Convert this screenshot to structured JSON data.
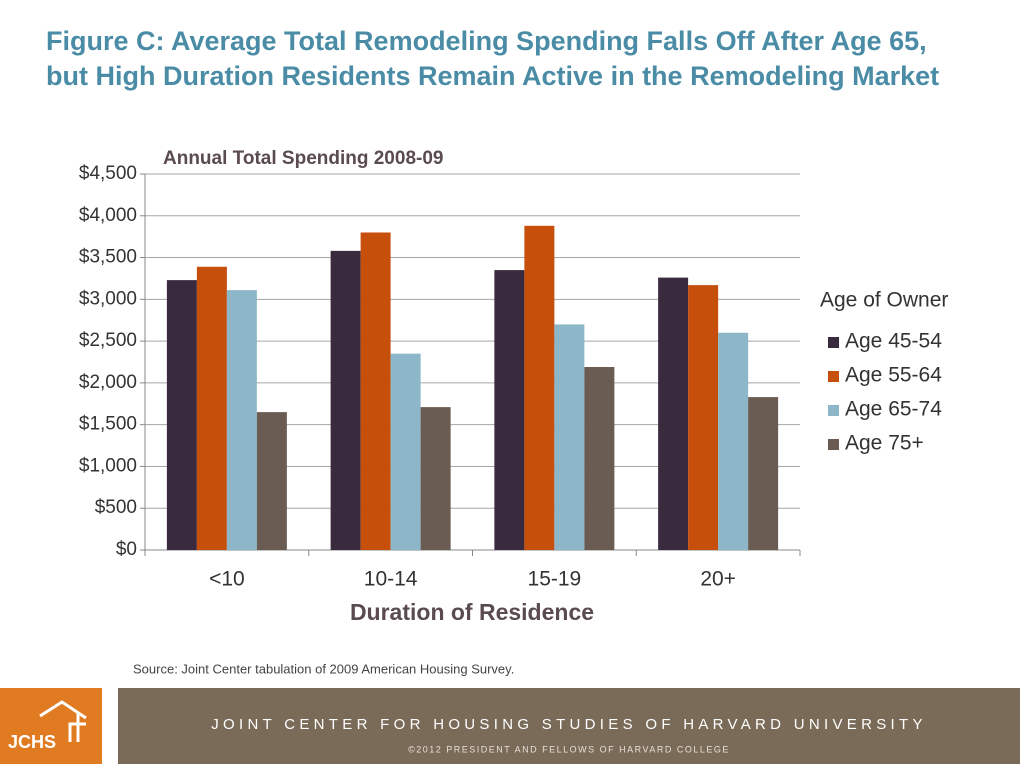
{
  "chart_data": {
    "type": "bar",
    "title": "Figure C: Average Total Remodeling Spending Falls Off After Age 65, but High Duration Residents Remain Active in the Remodeling Market",
    "subtitle": "Annual Total Spending 2008-09",
    "x_label": "Duration of Residence",
    "legend_title": "Age of Owner",
    "legend": "right",
    "grid": true,
    "source": "Source: Joint Center tabulation  of 2009 American Housing Survey.",
    "categories": [
      "<10",
      "10-14",
      "15-19",
      "20+"
    ],
    "series": [
      {
        "name": "Age 45-54",
        "color": "#3a2a3e",
        "values": [
          3230,
          3580,
          3350,
          3260
        ]
      },
      {
        "name": "Age 55-64",
        "color": "#c54f0b",
        "values": [
          3390,
          3800,
          3880,
          3170
        ]
      },
      {
        "name": "Age 65-74",
        "color": "#8db7c8",
        "values": [
          3110,
          2350,
          2700,
          2600
        ]
      },
      {
        "name": "Age 75+",
        "color": "#6a5c52",
        "values": [
          1650,
          1710,
          2190,
          1830
        ]
      }
    ],
    "ylim": [
      0,
      4500
    ],
    "yticks": [
      {
        "value": 0,
        "label": "$0"
      },
      {
        "value": 500,
        "label": "$500"
      },
      {
        "value": 1000,
        "label": "$1,000"
      },
      {
        "value": 1500,
        "label": "$1,500"
      },
      {
        "value": 2000,
        "label": "$2,000"
      },
      {
        "value": 2500,
        "label": "$2,500"
      },
      {
        "value": 3000,
        "label": "$3,000"
      },
      {
        "value": 3500,
        "label": "$3,500"
      },
      {
        "value": 4000,
        "label": "$4,000"
      },
      {
        "value": 4500,
        "label": "$4,500"
      }
    ]
  },
  "footer": {
    "logo": "JCHS",
    "organization": "JOINT CENTER FOR HOUSING STUDIES OF HARVARD UNIVERSITY",
    "copyright": "©2012 PRESIDENT AND FELLOWS OF HARVARD COLLEGE"
  }
}
